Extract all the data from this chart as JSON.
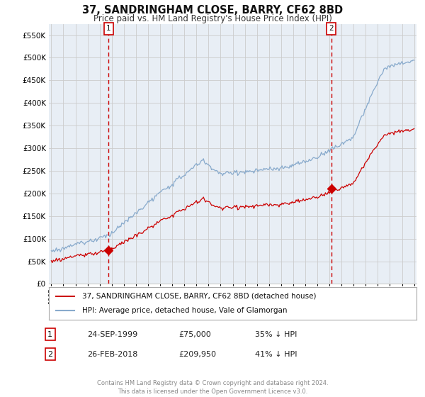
{
  "title": "37, SANDRINGHAM CLOSE, BARRY, CF62 8BD",
  "subtitle": "Price paid vs. HM Land Registry's House Price Index (HPI)",
  "hpi_label": "HPI: Average price, detached house, Vale of Glamorgan",
  "property_label": "37, SANDRINGHAM CLOSE, BARRY, CF62 8BD (detached house)",
  "footer": "Contains HM Land Registry data © Crown copyright and database right 2024.\nThis data is licensed under the Open Government Licence v3.0.",
  "sale1_date": "24-SEP-1999",
  "sale1_price": "£75,000",
  "sale1_hpi": "35% ↓ HPI",
  "sale1_year": 1999.73,
  "sale1_value": 75000,
  "sale2_date": "26-FEB-2018",
  "sale2_price": "£209,950",
  "sale2_hpi": "41% ↓ HPI",
  "sale2_year": 2018.15,
  "sale2_value": 209950,
  "property_color": "#cc0000",
  "hpi_color": "#88aacc",
  "plot_bg_color": "#e8eef5",
  "ylim": [
    0,
    575000
  ],
  "xlim_start": 1994.8,
  "xlim_end": 2025.2,
  "background_color": "#ffffff",
  "grid_color": "#cccccc"
}
